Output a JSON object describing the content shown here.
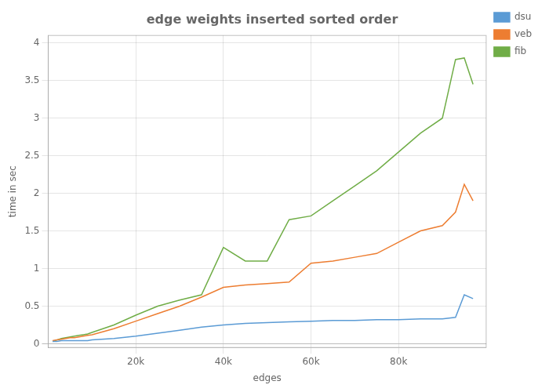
{
  "chart_data": {
    "type": "line",
    "title": "edge weights inserted sorted order",
    "xlabel": "edges",
    "ylabel": "time in sec",
    "x": [
      1000,
      2000,
      3000,
      4000,
      5000,
      6000,
      7000,
      8000,
      9000,
      10000,
      15000,
      20000,
      25000,
      30000,
      35000,
      40000,
      45000,
      50000,
      55000,
      60000,
      65000,
      70000,
      75000,
      80000,
      85000,
      90000,
      93000,
      95000,
      97000
    ],
    "series": [
      {
        "name": "dsu",
        "color": "#5B9BD5",
        "values": [
          0.03,
          0.03,
          0.04,
          0.04,
          0.04,
          0.04,
          0.04,
          0.04,
          0.04,
          0.05,
          0.07,
          0.1,
          0.14,
          0.18,
          0.22,
          0.25,
          0.27,
          0.28,
          0.29,
          0.3,
          0.31,
          0.31,
          0.32,
          0.32,
          0.33,
          0.33,
          0.35,
          0.65,
          0.6
        ]
      },
      {
        "name": "veb",
        "color": "#ED7D31",
        "values": [
          0.04,
          0.05,
          0.06,
          0.07,
          0.08,
          0.08,
          0.09,
          0.1,
          0.11,
          0.12,
          0.2,
          0.3,
          0.4,
          0.5,
          0.62,
          0.75,
          0.78,
          0.8,
          0.82,
          1.07,
          1.1,
          1.15,
          1.2,
          1.35,
          1.5,
          1.57,
          1.75,
          2.12,
          1.9
        ]
      },
      {
        "name": "fib",
        "color": "#70AD47",
        "values": [
          0.03,
          0.05,
          0.07,
          0.08,
          0.09,
          0.1,
          0.11,
          0.12,
          0.13,
          0.15,
          0.25,
          0.38,
          0.5,
          0.58,
          0.65,
          1.28,
          1.1,
          1.1,
          1.65,
          1.7,
          1.9,
          2.1,
          2.3,
          2.55,
          2.8,
          3.0,
          3.78,
          3.8,
          3.45
        ]
      }
    ],
    "xlim": [
      0,
      100000
    ],
    "xticks": [
      {
        "value": 20000,
        "label": "20k"
      },
      {
        "value": 40000,
        "label": "40k"
      },
      {
        "value": 60000,
        "label": "60k"
      },
      {
        "value": 80000,
        "label": "80k"
      }
    ],
    "ylim": [
      -0.05,
      4.1
    ],
    "yticks": [
      0,
      0.5,
      1,
      1.5,
      2,
      2.5,
      3,
      3.5,
      4
    ],
    "grid": true,
    "legend": "right"
  }
}
